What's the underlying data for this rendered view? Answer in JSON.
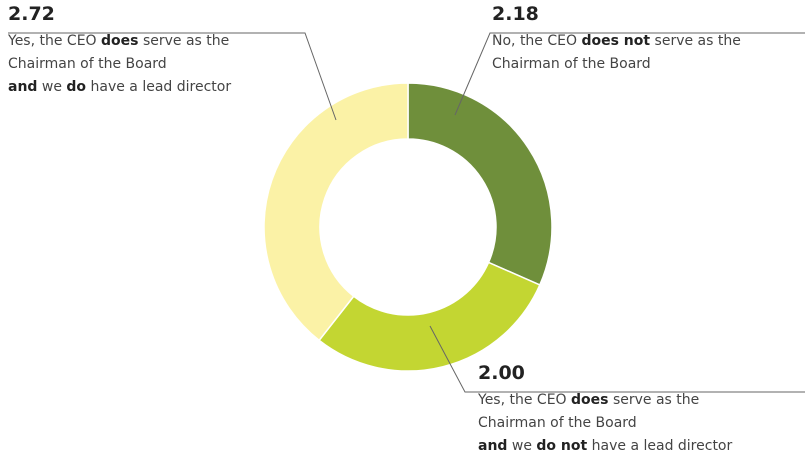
{
  "chart_data": {
    "type": "pie",
    "donut": true,
    "values": [
      2.18,
      2.0,
      2.72
    ],
    "value_labels": [
      "2.18",
      "2.00",
      "2.72"
    ],
    "colors": [
      "#6f8f3b",
      "#c3d632",
      "#fbf2a6"
    ],
    "labels": [
      [
        [
          {
            "text": "No, the CEO "
          },
          {
            "text": "does not",
            "bold": true
          },
          {
            "text": " serve as the"
          }
        ],
        [
          {
            "text": "Chairman of the Board"
          }
        ]
      ],
      [
        [
          {
            "text": "Yes, the CEO "
          },
          {
            "text": "does",
            "bold": true
          },
          {
            "text": " serve as the"
          }
        ],
        [
          {
            "text": "Chairman of the Board"
          }
        ],
        [
          {
            "text": "and",
            "bold": true
          },
          {
            "text": " we "
          },
          {
            "text": "do not",
            "bold": true
          },
          {
            "text": " have a lead director"
          }
        ]
      ],
      [
        [
          {
            "text": "Yes, the CEO "
          },
          {
            "text": "does",
            "bold": true
          },
          {
            "text": " serve as the"
          }
        ],
        [
          {
            "text": "Chairman of the Board"
          }
        ],
        [
          {
            "text": "and",
            "bold": true
          },
          {
            "text": " we "
          },
          {
            "text": "do",
            "bold": true
          },
          {
            "text": " have a lead director"
          }
        ]
      ]
    ]
  }
}
